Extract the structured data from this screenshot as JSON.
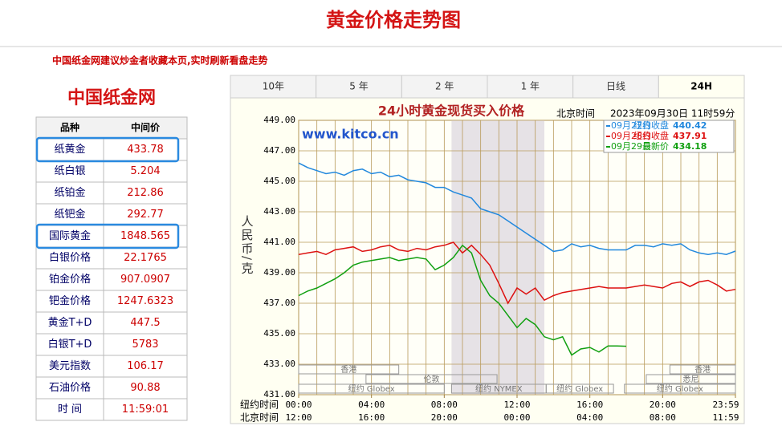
{
  "header": {
    "title": "黄金价格走势图",
    "notice": "中国纸金网建议炒金者收藏本页,实时刷新看盘走势"
  },
  "site_name": "中国纸金网",
  "table": {
    "columns": [
      "品种",
      "中间价"
    ],
    "rows": [
      [
        "纸黄金",
        "433.78"
      ],
      [
        "纸白银",
        "5.204"
      ],
      [
        "纸铂金",
        "212.86"
      ],
      [
        "纸钯金",
        "292.77"
      ],
      [
        "国际黄金",
        "1848.565"
      ],
      [
        "白银价格",
        "22.1765"
      ],
      [
        "铂金价格",
        "907.0907"
      ],
      [
        "钯金价格",
        "1247.6323"
      ],
      [
        "黄金T+D",
        "447.5"
      ],
      [
        "白银T+D",
        "5783"
      ],
      [
        "美元指数",
        "106.17"
      ],
      [
        "石油价格",
        "90.88"
      ],
      [
        "时 间",
        "11:59:01"
      ]
    ],
    "highlighted_rows": [
      0,
      4
    ]
  },
  "tabs": {
    "items": [
      "10年",
      "5 年",
      "2 年",
      "1 年",
      "日线",
      "24H"
    ],
    "active": 5
  },
  "chart_data": {
    "type": "line",
    "title": "24小时黄金现货买入价格",
    "time_label": "北京时间",
    "timestamp": "2023年09月30日 11时59分",
    "watermark": "www.kitco.cn",
    "ylabel": "人民币/克",
    "ylim": [
      431,
      449
    ],
    "yticks": [
      {
        "value": 431,
        "label": "431.00"
      },
      {
        "value": 433,
        "label": "433.00"
      },
      {
        "value": 435,
        "label": "435.00"
      },
      {
        "value": 437,
        "label": "437.00"
      },
      {
        "value": 439,
        "label": "439.00"
      },
      {
        "value": 441,
        "label": "441.00"
      },
      {
        "value": 443,
        "label": "443.00"
      },
      {
        "value": 445,
        "label": "445.00"
      },
      {
        "value": 447,
        "label": "447.00"
      },
      {
        "value": 449,
        "label": "449.00"
      }
    ],
    "xlim": [
      0,
      24
    ],
    "xgrid": [
      0,
      1,
      2,
      3,
      4,
      5,
      6,
      7,
      8,
      9,
      10,
      11,
      12,
      13,
      14,
      15,
      16,
      17,
      18,
      19,
      20,
      21,
      22,
      23,
      24
    ],
    "x_axes": [
      {
        "name": "纽约时间",
        "ticks": [
          {
            "value": 0,
            "label": "00:00"
          },
          {
            "value": 4,
            "label": "04:00"
          },
          {
            "value": 8,
            "label": "08:00"
          },
          {
            "value": 12,
            "label": "12:00"
          },
          {
            "value": 16,
            "label": "16:00"
          },
          {
            "value": 20,
            "label": "20:00"
          },
          {
            "value": 24,
            "label": "23:59"
          }
        ]
      },
      {
        "name": "北京时间",
        "ticks": [
          {
            "value": 0,
            "label": "12:00"
          },
          {
            "value": 4,
            "label": "16:00"
          },
          {
            "value": 8,
            "label": "20:00"
          },
          {
            "value": 12,
            "label": "00:00"
          },
          {
            "value": 16,
            "label": "04:00"
          },
          {
            "value": 20,
            "label": "08:00"
          },
          {
            "value": 24,
            "label": "11:59"
          }
        ]
      }
    ],
    "grid": true,
    "shade": [
      8.4,
      13.5
    ],
    "sessions": [
      [
        {
          "label": "香港",
          "start": 0,
          "end": 5.5
        },
        {
          "label": "香港",
          "start": 20.4,
          "end": 24
        }
      ],
      [
        {
          "label": "伦敦",
          "start": 3.7,
          "end": 10.9
        },
        {
          "label": "悉尼",
          "start": 19.1,
          "end": 24
        }
      ],
      [
        {
          "label": "纽约 Globex",
          "start": 0,
          "end": 8
        },
        {
          "label": "纽约 NYMEX",
          "start": 8.4,
          "end": 13.6
        },
        {
          "label": "纽约 Globex",
          "start": 13.6,
          "end": 17.3
        },
        {
          "label": "纽约 Globex",
          "start": 17.9,
          "end": 24
        }
      ]
    ],
    "x": [
      0,
      0.5,
      1,
      1.5,
      2,
      2.5,
      3,
      3.5,
      4,
      4.5,
      5,
      5.5,
      6,
      6.5,
      7,
      7.5,
      8,
      8.5,
      9,
      9.5,
      10,
      10.5,
      11,
      11.5,
      12,
      12.5,
      13,
      13.5,
      14,
      14.5,
      15,
      15.5,
      16,
      16.5,
      17,
      17.5,
      18,
      18.5,
      19,
      19.5,
      20,
      20.5,
      21,
      21.5,
      22,
      22.5,
      23,
      23.5,
      24
    ],
    "series": [
      {
        "name": "09月27日",
        "note": "纽约收盘",
        "last": 440.42,
        "color": "#2288dd",
        "values": [
          446.2,
          445.9,
          445.7,
          445.5,
          445.6,
          445.4,
          445.7,
          445.8,
          445.5,
          445.6,
          445.3,
          445.4,
          445.1,
          445.0,
          444.9,
          444.6,
          444.6,
          444.3,
          444.1,
          443.9,
          443.2,
          443.0,
          442.8,
          442.4,
          442.0,
          441.6,
          441.2,
          440.8,
          440.4,
          440.5,
          440.9,
          440.7,
          440.8,
          440.6,
          440.5,
          440.5,
          440.5,
          440.8,
          440.8,
          440.7,
          440.9,
          440.8,
          440.9,
          440.5,
          440.3,
          440.2,
          440.3,
          440.2,
          440.42
        ]
      },
      {
        "name": "09月28日",
        "note": "纽约收盘",
        "last": 437.91,
        "color": "#dd1111",
        "values": [
          440.2,
          440.3,
          440.4,
          440.2,
          440.5,
          440.6,
          440.7,
          440.4,
          440.5,
          440.7,
          440.8,
          440.5,
          440.4,
          440.6,
          440.5,
          440.7,
          440.8,
          441.0,
          440.3,
          440.8,
          440.2,
          439.5,
          438.3,
          437.0,
          438.0,
          437.6,
          438.0,
          437.2,
          437.5,
          437.7,
          437.8,
          437.9,
          438.0,
          438.1,
          438.0,
          438.0,
          438.0,
          438.1,
          438.2,
          438.1,
          438.0,
          438.3,
          438.4,
          438.1,
          438.4,
          438.5,
          438.2,
          437.8,
          437.91
        ]
      },
      {
        "name": "09月29日",
        "note": "最新价",
        "last": 434.18,
        "color": "#11a011",
        "values": [
          437.5,
          437.8,
          438.0,
          438.3,
          438.6,
          439.0,
          439.5,
          439.7,
          439.8,
          439.9,
          440.0,
          439.8,
          439.9,
          440.0,
          439.9,
          439.2,
          439.5,
          440.0,
          440.8,
          440.3,
          438.5,
          437.5,
          437.0,
          436.2,
          435.4,
          436.0,
          435.6,
          434.8,
          434.6,
          434.8,
          433.6,
          434.0,
          434.1,
          433.8,
          434.2,
          434.2,
          434.18,
          null,
          null,
          null,
          null,
          null,
          null,
          null,
          null,
          null,
          null,
          null,
          null
        ]
      }
    ]
  }
}
